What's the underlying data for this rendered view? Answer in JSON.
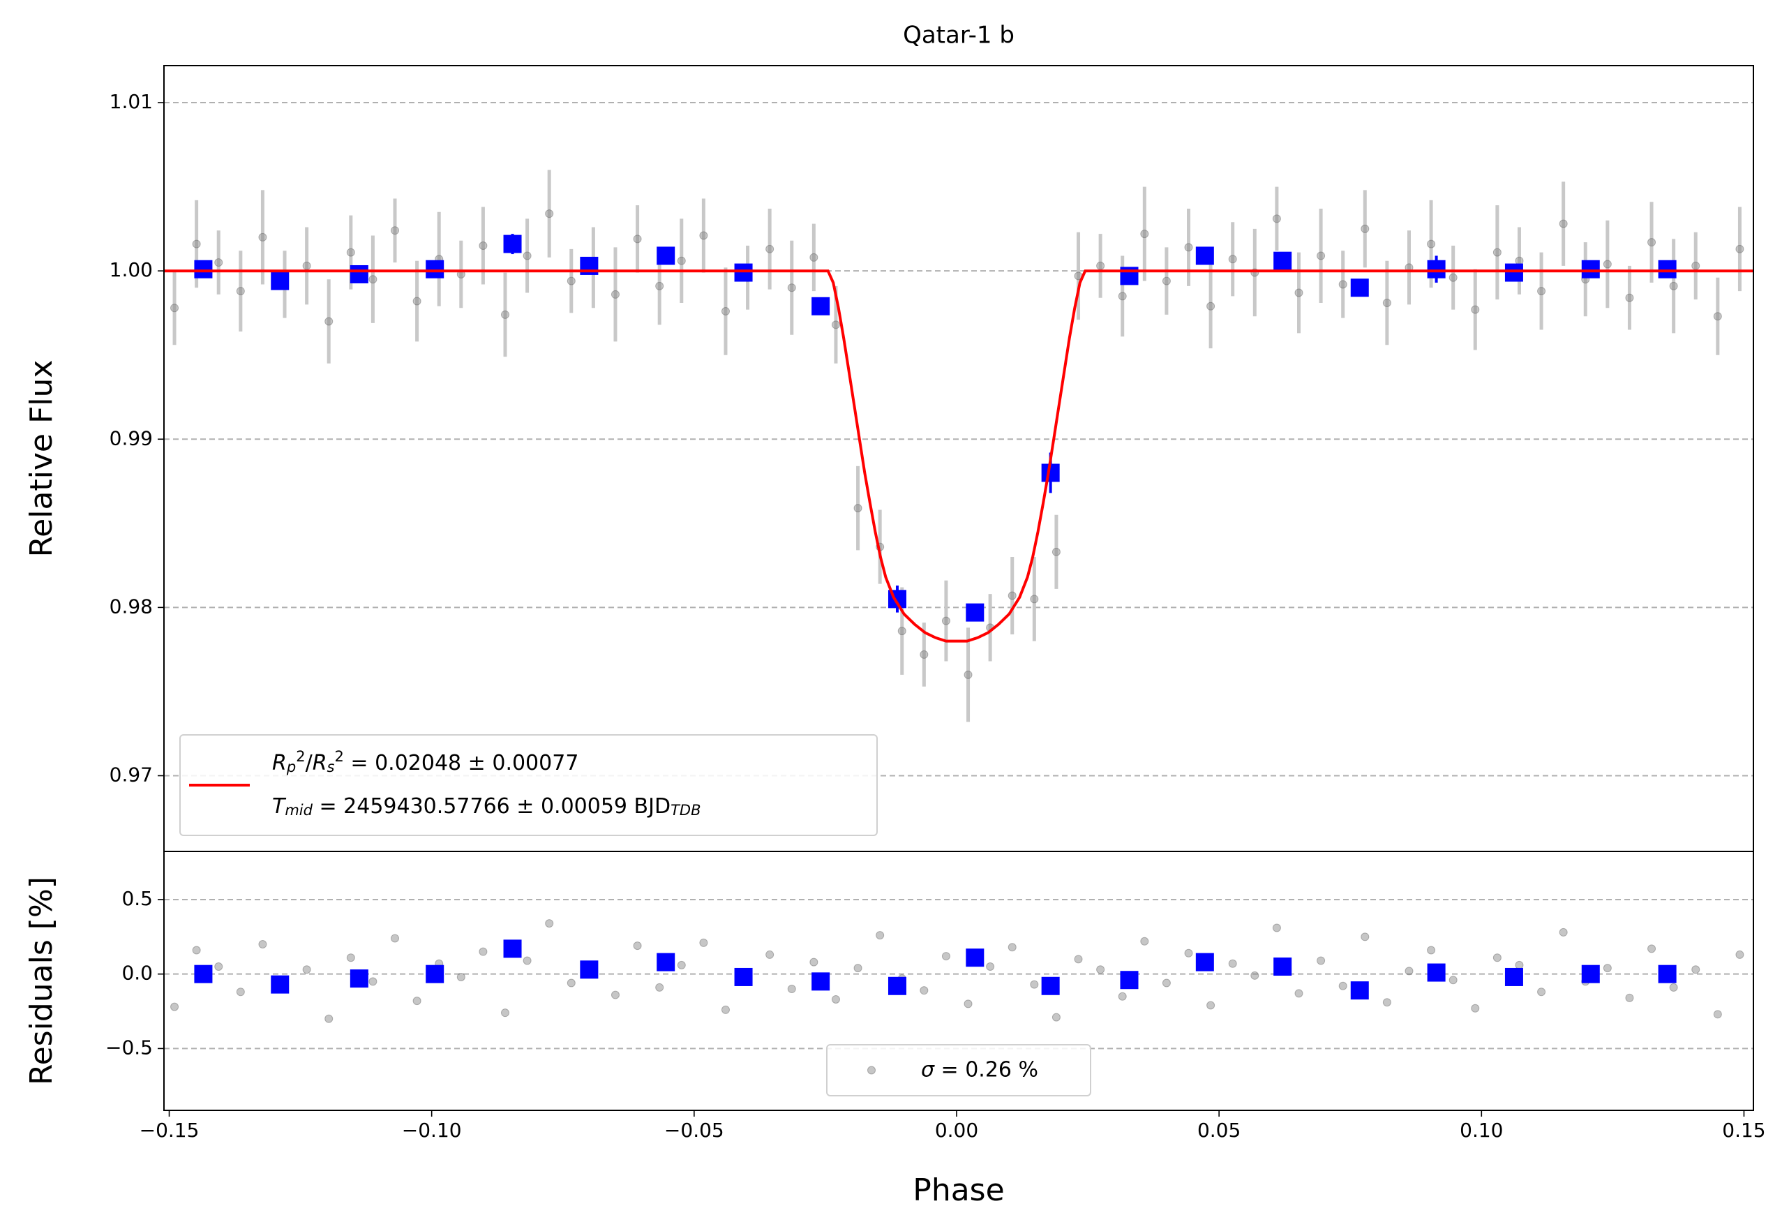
{
  "chart_data": [
    {
      "type": "errorbar",
      "title": "Qatar-1 b",
      "ylabel": "Relative Flux",
      "xlim": [
        -0.151,
        0.1518
      ],
      "ylim": [
        0.9655,
        1.0122
      ],
      "yticks": [
        0.97,
        0.98,
        0.99,
        {
          "value": 1.0,
          "label": "1.00"
        },
        1.01
      ],
      "grid": true,
      "legend": "lower left",
      "series": [
        {
          "type": "errorbar",
          "color": "#808080",
          "marker": "circle",
          "x": [
            -0.149,
            -0.1448,
            -0.1406,
            -0.1364,
            -0.1322,
            -0.128,
            -0.1238,
            -0.1196,
            -0.1154,
            -0.1112,
            -0.107,
            -0.1028,
            -0.0986,
            -0.0944,
            -0.0902,
            -0.086,
            -0.0818,
            -0.0776,
            -0.0734,
            -0.0692,
            -0.065,
            -0.0608,
            -0.0566,
            -0.0524,
            -0.0482,
            -0.044,
            -0.0398,
            -0.0356,
            -0.0314,
            -0.0272,
            -0.023,
            -0.0188,
            -0.0146,
            -0.0104,
            -0.0062,
            -0.002,
            0.0022,
            0.0064,
            0.0106,
            0.0148,
            0.019,
            0.0232,
            0.0274,
            0.0316,
            0.0358,
            0.04,
            0.0442,
            0.0484,
            0.0526,
            0.0568,
            0.061,
            0.0652,
            0.0694,
            0.0736,
            0.0778,
            0.082,
            0.0862,
            0.0904,
            0.0946,
            0.0988,
            0.103,
            0.1072,
            0.1114,
            0.1156,
            0.1198,
            0.124,
            0.1282,
            0.1324,
            0.1366,
            0.1408,
            0.145,
            0.1492
          ],
          "values": [
            0.9978,
            1.0016,
            1.0005,
            0.9988,
            1.002,
            0.9992,
            1.0003,
            0.997,
            1.0011,
            0.9995,
            1.0024,
            0.9982,
            1.0007,
            0.9998,
            1.0015,
            0.9974,
            1.0009,
            1.0034,
            0.9994,
            1.0002,
            0.9986,
            1.0019,
            0.9991,
            1.0006,
            1.0021,
            0.9976,
            0.9996,
            1.0013,
            0.999,
            1.0008,
            0.9968,
            0.9859,
            0.9836,
            0.9786,
            0.9772,
            0.9792,
            0.976,
            0.9788,
            0.9807,
            0.9805,
            0.9833,
            0.9997,
            1.0003,
            0.9985,
            1.0022,
            0.9994,
            1.0014,
            0.9979,
            1.0007,
            0.9999,
            1.0031,
            0.9987,
            1.0009,
            0.9992,
            1.0025,
            0.9981,
            1.0002,
            1.0016,
            0.9996,
            0.9977,
            1.0011,
            1.0006,
            0.9988,
            1.0028,
            0.9995,
            1.0004,
            0.9984,
            1.0017,
            0.9991,
            1.0003,
            0.9973,
            1.0013
          ],
          "errors": [
            0.0022,
            0.0026,
            0.0019,
            0.0024,
            0.0028,
            0.002,
            0.0023,
            0.0025,
            0.0022,
            0.0026,
            0.0019,
            0.0024,
            0.0028,
            0.002,
            0.0023,
            0.0025,
            0.0022,
            0.0026,
            0.0019,
            0.0024,
            0.0028,
            0.002,
            0.0023,
            0.0025,
            0.0022,
            0.0026,
            0.0019,
            0.0024,
            0.0028,
            0.002,
            0.0023,
            0.0025,
            0.0022,
            0.0026,
            0.0019,
            0.0024,
            0.0028,
            0.002,
            0.0023,
            0.0025,
            0.0022,
            0.0026,
            0.0019,
            0.0024,
            0.0028,
            0.002,
            0.0023,
            0.0025,
            0.0022,
            0.0026,
            0.0019,
            0.0024,
            0.0028,
            0.002,
            0.0023,
            0.0025,
            0.0022,
            0.0026,
            0.0019,
            0.0024,
            0.0028,
            0.002,
            0.0023,
            0.0025,
            0.0022,
            0.0026,
            0.0019,
            0.0024,
            0.0028,
            0.002,
            0.0023,
            0.0025
          ]
        },
        {
          "type": "errorbar",
          "color": "#0000ff",
          "marker": "square",
          "x": [
            -0.1435,
            -0.1289,
            -0.1138,
            -0.0994,
            -0.0846,
            -0.07,
            -0.0554,
            -0.0406,
            -0.0259,
            -0.0113,
            0.0035,
            0.0179,
            0.0329,
            0.0473,
            0.0621,
            0.0768,
            0.0914,
            0.1062,
            0.1208,
            0.1354
          ],
          "values": [
            1.0001,
            0.9994,
            0.9998,
            1.0001,
            1.0016,
            1.0003,
            1.0009,
            0.9999,
            0.9979,
            0.9805,
            0.9797,
            0.988,
            0.9997,
            1.0009,
            1.0006,
            0.999,
            1.0001,
            0.9999,
            1.0001,
            1.0001
          ],
          "errors": [
            0.0004,
            0.0004,
            0.0004,
            0.0004,
            0.0006,
            0.0004,
            0.0004,
            0.0004,
            0.0004,
            0.0008,
            0.0005,
            0.0012,
            0.0004,
            0.0004,
            0.0004,
            0.0004,
            0.0008,
            0.0004,
            0.0004,
            0.0004
          ]
        },
        {
          "type": "line",
          "color": "#ff0000",
          "x": [
            -0.151,
            -0.0245,
            -0.0235,
            -0.0225,
            -0.0215,
            -0.0205,
            -0.0195,
            -0.0185,
            -0.0175,
            -0.0165,
            -0.0155,
            -0.0145,
            -0.0135,
            -0.012,
            -0.01,
            -0.008,
            -0.006,
            -0.004,
            -0.002,
            0,
            0.002,
            0.004,
            0.006,
            0.008,
            0.01,
            0.012,
            0.0135,
            0.0145,
            0.0155,
            0.0165,
            0.0175,
            0.0185,
            0.0195,
            0.0205,
            0.0215,
            0.0225,
            0.0235,
            0.0245,
            0.1518
          ],
          "values": [
            1,
            1,
            0.9993,
            0.9978,
            0.996,
            0.994,
            0.992,
            0.99,
            0.988,
            0.9862,
            0.9845,
            0.983,
            0.9818,
            0.9806,
            0.9796,
            0.979,
            0.9785,
            0.9782,
            0.978,
            0.978,
            0.978,
            0.9782,
            0.9785,
            0.979,
            0.9796,
            0.9806,
            0.9818,
            0.983,
            0.9845,
            0.9862,
            0.988,
            0.99,
            0.992,
            0.994,
            0.996,
            0.9978,
            0.9993,
            1,
            1
          ],
          "legend_label": [
            [
              {
                "text": "R",
                "style": "italic"
              },
              {
                "text": "p",
                "style": "sub"
              },
              {
                "text": "2",
                "style": "sup"
              },
              {
                "text": "/"
              },
              {
                "text": "R",
                "style": "italic"
              },
              {
                "text": "s",
                "style": "sub"
              },
              {
                "text": "2",
                "style": "sup"
              },
              {
                "text": " = 0.02048 ± 0.00077"
              }
            ],
            [
              {
                "text": "T",
                "style": "italic"
              },
              {
                "text": "mid",
                "style": "sub"
              },
              {
                "text": " = 2459430.57766 ± 0.00059 BJD"
              },
              {
                "text": "TDB",
                "style": "sub"
              }
            ]
          ]
        }
      ]
    },
    {
      "type": "errorbar",
      "xlabel": "Phase",
      "ylabel": "Residuals [%]",
      "xlim": [
        -0.151,
        0.1518
      ],
      "ylim": [
        -0.915,
        0.823
      ],
      "xticks": [
        {
          "value": -0.15,
          "label": "−0.15"
        },
        {
          "value": -0.1,
          "label": "−0.10"
        },
        {
          "value": -0.05,
          "label": "−0.05"
        },
        {
          "value": 0,
          "label": "0.00"
        },
        {
          "value": 0.05,
          "label": "0.05"
        },
        {
          "value": 0.1,
          "label": "0.10"
        },
        {
          "value": 0.15,
          "label": "0.15"
        }
      ],
      "yticks": [
        {
          "value": -0.5,
          "label": "−0.5"
        },
        {
          "value": 0,
          "label": "0.0"
        },
        0.5
      ],
      "grid": true,
      "legend": "lower center",
      "series": [
        {
          "type": "errorbar",
          "color": "#808080",
          "marker": "circle",
          "x": [
            -0.149,
            -0.1448,
            -0.1406,
            -0.1364,
            -0.1322,
            -0.128,
            -0.1238,
            -0.1196,
            -0.1154,
            -0.1112,
            -0.107,
            -0.1028,
            -0.0986,
            -0.0944,
            -0.0902,
            -0.086,
            -0.0818,
            -0.0776,
            -0.0734,
            -0.0692,
            -0.065,
            -0.0608,
            -0.0566,
            -0.0524,
            -0.0482,
            -0.044,
            -0.0398,
            -0.0356,
            -0.0314,
            -0.0272,
            -0.023,
            -0.0188,
            -0.0146,
            -0.0104,
            -0.0062,
            -0.002,
            0.0022,
            0.0064,
            0.0106,
            0.0148,
            0.019,
            0.0232,
            0.0274,
            0.0316,
            0.0358,
            0.04,
            0.0442,
            0.0484,
            0.0526,
            0.0568,
            0.061,
            0.0652,
            0.0694,
            0.0736,
            0.0778,
            0.082,
            0.0862,
            0.0904,
            0.0946,
            0.0988,
            0.103,
            0.1072,
            0.1114,
            0.1156,
            0.1198,
            0.124,
            0.1282,
            0.1324,
            0.1366,
            0.1408,
            0.145,
            0.1492
          ],
          "values": [
            -0.22,
            0.16,
            0.05,
            -0.12,
            0.2,
            -0.08,
            0.03,
            -0.3,
            0.11,
            -0.05,
            0.24,
            -0.18,
            0.07,
            -0.02,
            0.15,
            -0.26,
            0.09,
            0.34,
            -0.06,
            0.02,
            -0.14,
            0.19,
            -0.09,
            0.06,
            0.21,
            -0.24,
            -0.04,
            0.13,
            -0.1,
            0.08,
            -0.17,
            0.04,
            0.26,
            -0.03,
            -0.11,
            0.12,
            -0.2,
            0.05,
            0.18,
            -0.07,
            -0.29,
            0.1,
            0.03,
            -0.15,
            0.22,
            -0.06,
            0.14,
            -0.21,
            0.07,
            -0.01,
            0.31,
            -0.13,
            0.09,
            -0.08,
            0.25,
            -0.19,
            0.02,
            0.16,
            -0.04,
            -0.23,
            0.11,
            0.06,
            -0.12,
            0.28,
            -0.05,
            0.04,
            -0.16,
            0.17,
            -0.09,
            0.03,
            -0.27,
            0.13
          ],
          "legend_label": [
            [
              {
                "text": "σ",
                "style": "italic"
              },
              {
                "text": " = 0.26 %"
              }
            ]
          ]
        },
        {
          "type": "errorbar",
          "color": "#0000ff",
          "marker": "square",
          "x": [
            -0.1435,
            -0.1289,
            -0.1138,
            -0.0994,
            -0.0846,
            -0.07,
            -0.0554,
            -0.0406,
            -0.0259,
            -0.0113,
            0.0035,
            0.0179,
            0.0329,
            0.0473,
            0.0621,
            0.0768,
            0.0914,
            0.1062,
            0.1208,
            0.1354
          ],
          "values": [
            0,
            -0.07,
            -0.03,
            0,
            0.17,
            0.03,
            0.08,
            -0.02,
            -0.05,
            -0.08,
            0.11,
            -0.08,
            -0.04,
            0.08,
            0.05,
            -0.11,
            0.01,
            -0.02,
            0,
            0
          ]
        }
      ]
    }
  ]
}
